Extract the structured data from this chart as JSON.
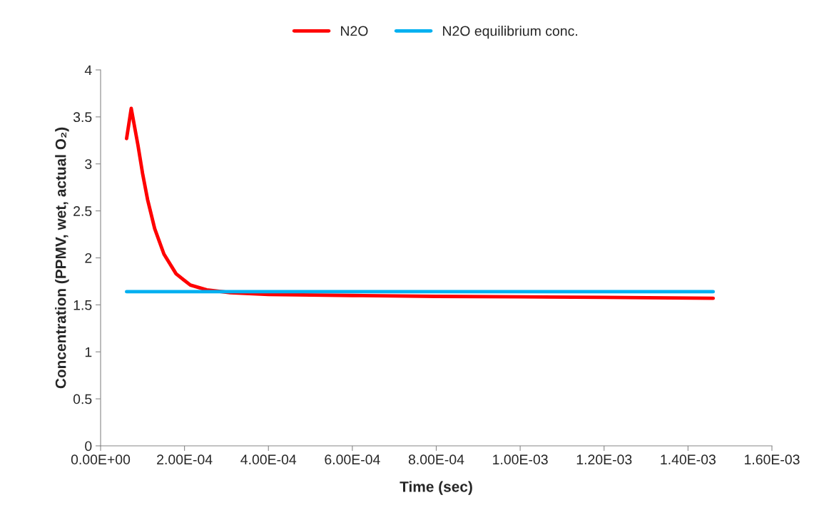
{
  "chart_data": {
    "type": "line",
    "xlabel": "Time (sec)",
    "ylabel": "Concentration (PPMV, wet, actual O₂)",
    "series": [
      {
        "name": "N2O",
        "color": "#ff0000",
        "x": [
          6.2e-05,
          7.3e-05,
          8.9e-05,
          0.0001,
          0.000112,
          0.000129,
          0.000151,
          0.00018,
          0.000214,
          0.000253,
          0.000309,
          0.0004,
          0.0006,
          0.0008,
          0.001,
          0.0012,
          0.00146
        ],
        "values": [
          3.27,
          3.59,
          3.2,
          2.9,
          2.62,
          2.31,
          2.04,
          1.83,
          1.71,
          1.66,
          1.63,
          1.61,
          1.6,
          1.59,
          1.585,
          1.58,
          1.57
        ]
      },
      {
        "name": "N2O equilibrium conc.",
        "color": "#00b0f0",
        "x": [
          6.2e-05,
          0.00146
        ],
        "values": [
          1.64,
          1.64
        ]
      }
    ],
    "xlim": [
      0,
      0.0016
    ],
    "xticks": [
      {
        "value": 0,
        "label": "0.00E+00"
      },
      {
        "value": 0.0002,
        "label": "2.00E-04"
      },
      {
        "value": 0.0004,
        "label": "4.00E-04"
      },
      {
        "value": 0.0006,
        "label": "6.00E-04"
      },
      {
        "value": 0.0008,
        "label": "8.00E-04"
      },
      {
        "value": 0.001,
        "label": "1.00E-03"
      },
      {
        "value": 0.0012,
        "label": "1.20E-03"
      },
      {
        "value": 0.0014,
        "label": "1.40E-03"
      },
      {
        "value": 0.0016,
        "label": "1.60E-03"
      }
    ],
    "ylim": [
      0,
      4
    ],
    "yticks": [
      0,
      0.5,
      1,
      1.5,
      2,
      2.5,
      3,
      3.5,
      4
    ],
    "grid": false,
    "legend": "top",
    "marker": "none",
    "line_style": "solid"
  }
}
